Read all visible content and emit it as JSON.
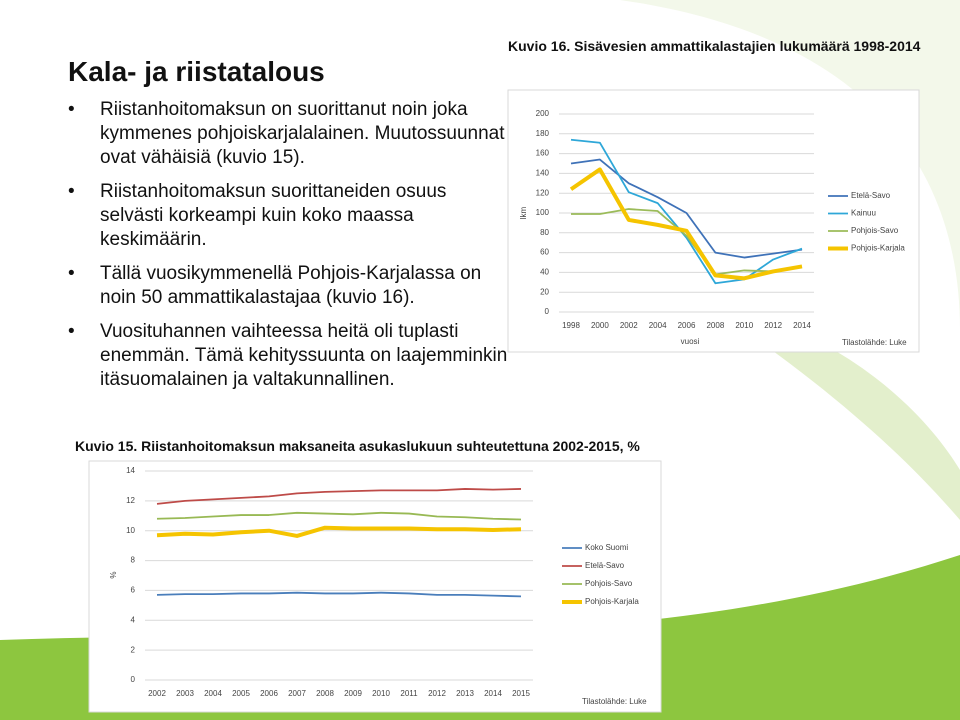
{
  "slide": {
    "title": "Kala- ja riistatalous",
    "bullets": [
      "Riistanhoitomaksun on suorittanut noin joka kymmenes pohjoiskarjalalainen. Muutossuunnat ovat vähäisiä (kuvio 15).",
      "Riistanhoitomaksun suorittaneiden osuus selvästi korkeampi kuin koko maassa keskimäärin.",
      "Tällä vuosikymmenellä Pohjois-Karjalassa on noin 50 ammattikalastajaa (kuvio 16).",
      "Vuosituhannen vaihteessa heitä oli tuplasti enemmän. Tämä kehityssuunta on laajemminkin itäsuomalainen ja valtakunnallinen."
    ]
  },
  "chart_data": [
    {
      "type": "line",
      "title": "Kuvio 16. Sisävesien ammattikalastajien lukumäärä 1998-2014",
      "x_label": "vuosi",
      "y_label": "lkm",
      "source": "Tilastolähde: Luke",
      "categories": [
        "1998",
        "2000",
        "2002",
        "2004",
        "2006",
        "2008",
        "2010",
        "2012",
        "2014"
      ],
      "ylim": [
        0,
        200
      ],
      "yticks": [
        0,
        20,
        40,
        60,
        80,
        100,
        120,
        140,
        160,
        180,
        200
      ],
      "grid": true,
      "legend": "right",
      "series": [
        {
          "name": "Etelä-Savo",
          "color": "#3f72b8",
          "values": [
            150,
            154,
            130,
            116,
            100,
            60,
            55,
            59,
            63
          ]
        },
        {
          "name": "Kainuu",
          "color": "#2ea7d8",
          "values": [
            174,
            171,
            121,
            110,
            75,
            29,
            33,
            53,
            64
          ]
        },
        {
          "name": "Pohjois-Savo",
          "color": "#9bbb59",
          "values": [
            99,
            99,
            104,
            102,
            77,
            38,
            42,
            41,
            46
          ]
        },
        {
          "name": "Pohjois-Karjala",
          "color": "#f5c400",
          "values": [
            124,
            144,
            93,
            88,
            82,
            37,
            34,
            41,
            46
          ]
        }
      ]
    },
    {
      "type": "line",
      "title": "Kuvio 15. Riistanhoitomaksun maksaneita asukaslukuun suhteutettuna 2002-2015, %",
      "y_label": "%",
      "source": "Tilastolähde: Luke",
      "categories": [
        "2002",
        "2003",
        "2004",
        "2005",
        "2006",
        "2007",
        "2008",
        "2009",
        "2010",
        "2011",
        "2012",
        "2013",
        "2014",
        "2015"
      ],
      "ylim": [
        0,
        14
      ],
      "yticks": [
        0,
        2,
        4,
        6,
        8,
        10,
        12,
        14
      ],
      "grid": true,
      "legend": "right",
      "series": [
        {
          "name": "Koko Suomi",
          "color": "#4a7ebb",
          "values": [
            5.7,
            5.75,
            5.75,
            5.8,
            5.8,
            5.85,
            5.8,
            5.8,
            5.85,
            5.8,
            5.7,
            5.7,
            5.65,
            5.6
          ]
        },
        {
          "name": "Etelä-Savo",
          "color": "#be4b48",
          "values": [
            11.8,
            12.0,
            12.1,
            12.2,
            12.3,
            12.5,
            12.6,
            12.65,
            12.7,
            12.7,
            12.7,
            12.8,
            12.75,
            12.8
          ]
        },
        {
          "name": "Pohjois-Savo",
          "color": "#98b954",
          "values": [
            10.8,
            10.85,
            10.95,
            11.05,
            11.05,
            11.2,
            11.15,
            11.1,
            11.2,
            11.15,
            10.95,
            10.9,
            10.8,
            10.75
          ]
        },
        {
          "name": "Pohjois-Karjala",
          "color": "#f5c400",
          "values": [
            9.7,
            9.8,
            9.75,
            9.9,
            10.0,
            9.65,
            10.2,
            10.15,
            10.15,
            10.15,
            10.1,
            10.1,
            10.05,
            10.1
          ]
        }
      ]
    }
  ]
}
